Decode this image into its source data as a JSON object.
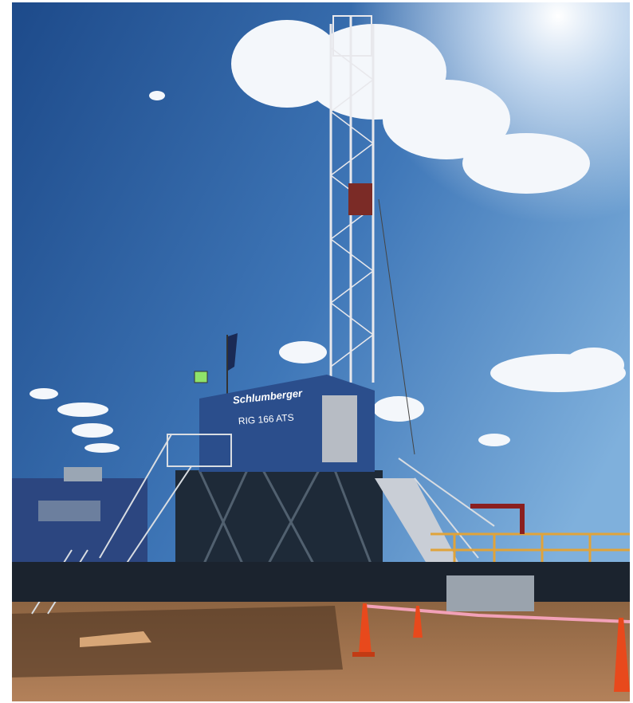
{
  "signage": {
    "company": "Schlumberger",
    "rig_name": "RIG 166 ATS"
  }
}
